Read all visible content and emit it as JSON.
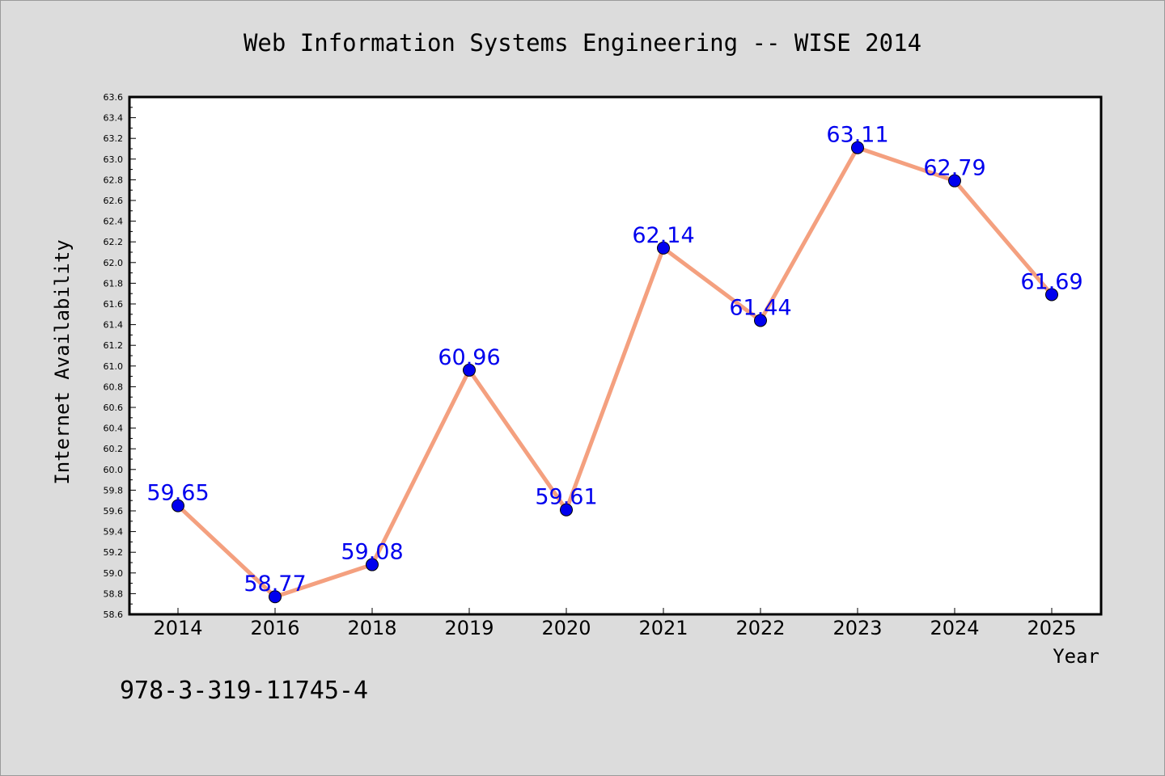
{
  "chart_data": {
    "type": "line",
    "title": "Web Information Systems Engineering -- WISE 2014",
    "xlabel": "Year",
    "ylabel": "Internet Availability",
    "categories": [
      "2014",
      "2016",
      "2018",
      "2019",
      "2020",
      "2021",
      "2022",
      "2023",
      "2024",
      "2025"
    ],
    "series": [
      {
        "values": [
          59.65,
          58.77,
          59.08,
          60.96,
          59.61,
          62.14,
          61.44,
          63.11,
          62.79,
          61.69
        ]
      }
    ],
    "data_labels": [
      "59.65",
      "58.77",
      "59.08",
      "60.96",
      "59.61",
      "62.14",
      "61.44",
      "63.11",
      "62.79",
      "61.69"
    ],
    "ylim": [
      58.6,
      63.6
    ],
    "y_ticks": [
      "58.6",
      "58.8",
      "59.0",
      "59.2",
      "59.4",
      "59.6",
      "59.8",
      "60.0",
      "60.2",
      "60.4",
      "60.6",
      "60.8",
      "61.0",
      "61.2",
      "61.4",
      "61.6",
      "61.8",
      "62.0",
      "62.2",
      "62.4",
      "62.6",
      "62.8",
      "63.0",
      "63.2",
      "63.4",
      "63.6"
    ],
    "grid": false,
    "legend": "none",
    "colors": {
      "line": "#f4a07f",
      "marker": "#0000ee",
      "label": "#0000ee",
      "plot_bg": "#ffffff",
      "page_bg": "#dcdcdc"
    }
  },
  "footnote": "978-3-319-11745-4"
}
